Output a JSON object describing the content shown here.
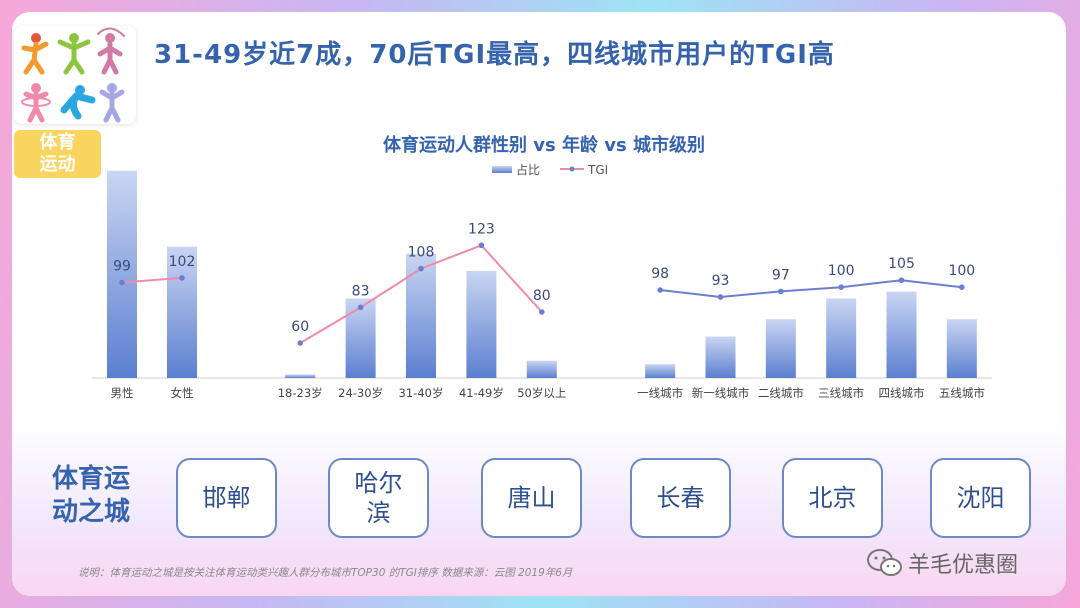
{
  "headline": "31-49岁近7成，70后TGI最高，四线城市用户的TGI高",
  "category_badge": "体育\n运动",
  "cities_label": "体育运动之城",
  "cities": [
    "邯郸",
    "哈尔滨",
    "唐山",
    "长春",
    "北京",
    "沈阳"
  ],
  "note": "说明：体育运动之城是按关注体育运动类兴趣人群分布城市TOP30 的TGI排序 数据来源：云图 2019年6月",
  "watermark": "羊毛优惠圈",
  "icons": [
    "sports-figures-icon",
    "wechat-icon"
  ],
  "colors": {
    "accent": "#3563ad",
    "bar": "#6f8fd6",
    "line": "#f08aa8",
    "line_blue": "#6c7fcf",
    "badge": "#f9d45e"
  },
  "chart_data": {
    "title": "体育运动人群性别 vs 年龄 vs 城市级别",
    "type": "bar+line",
    "legend": [
      "占比",
      "TGI"
    ],
    "legend_position": "top-center",
    "groups": [
      {
        "name": "gender",
        "categories": [
          "男性",
          "女性"
        ],
        "share": [
          60,
          38
        ],
        "tgi": [
          99,
          102
        ]
      },
      {
        "name": "age",
        "categories": [
          "18-23岁",
          "24-30岁",
          "31-40岁",
          "41-49岁",
          "50岁以上"
        ],
        "share": [
          1,
          23,
          36,
          31,
          5
        ],
        "tgi": [
          60,
          83,
          108,
          123,
          80
        ]
      },
      {
        "name": "city_tier",
        "categories": [
          "一线城市",
          "新一线城市",
          "二线城市",
          "三线城市",
          "四线城市",
          "五线城市"
        ],
        "share": [
          4,
          12,
          17,
          23,
          25,
          17
        ],
        "tgi": [
          98,
          93,
          97,
          100,
          105,
          100
        ]
      }
    ],
    "share_ylim": [
      0,
      66
    ],
    "tgi_ylim": [
      0,
      180
    ],
    "grid": false
  }
}
